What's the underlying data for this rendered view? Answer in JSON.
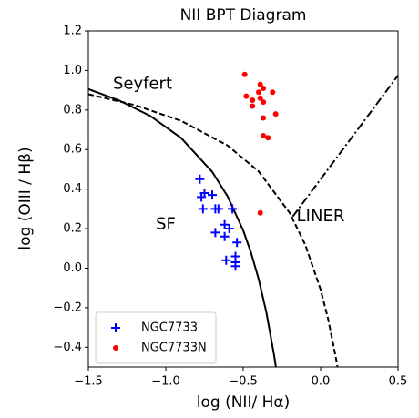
{
  "chart_data": {
    "type": "scatter",
    "title": "NII BPT Diagram",
    "x_label": "log (NII/ Hα)",
    "y_label": "log (OIII / Hβ)",
    "xlim": [
      -1.5,
      0.5
    ],
    "ylim": [
      -0.5,
      1.2
    ],
    "xticks": [
      {
        "value": -1.5,
        "label": "−1.5"
      },
      {
        "value": -1,
        "label": "−1.0"
      },
      {
        "value": -0.5,
        "label": "−0.5"
      },
      {
        "value": 0,
        "label": "0.0"
      },
      0.5
    ],
    "yticks": [
      {
        "value": -0.4,
        "label": "−0.4"
      },
      {
        "value": -0.2,
        "label": "−0.2"
      },
      {
        "value": 0,
        "label": "0.0"
      },
      0.2,
      0.4,
      0.6,
      0.8,
      {
        "value": 1,
        "label": "1.0"
      },
      1.2
    ],
    "legend": "lower left",
    "annotations": [
      "Seyfert",
      "SF",
      "LINER"
    ],
    "series": [
      {
        "name": "NGC7733",
        "color": "#0000ff",
        "marker": "plus",
        "x": [
          -0.78,
          -0.75,
          -0.77,
          -0.7,
          -0.76,
          -0.68,
          -0.66,
          -0.57,
          -0.68,
          -0.62,
          -0.59,
          -0.62,
          -0.54,
          -0.61,
          -0.55,
          -0.55,
          -0.55
        ],
        "y": [
          0.45,
          0.38,
          0.36,
          0.37,
          0.3,
          0.3,
          0.3,
          0.3,
          0.18,
          0.22,
          0.2,
          0.16,
          0.13,
          0.04,
          0.06,
          0.03,
          0.01
        ]
      },
      {
        "name": "NGC7733N",
        "color": "#ff0000",
        "marker": "circle",
        "x": [
          -0.49,
          -0.48,
          -0.44,
          -0.44,
          -0.4,
          -0.39,
          -0.37,
          -0.39,
          -0.37,
          -0.31,
          -0.29,
          -0.37,
          -0.37,
          -0.34,
          -0.39
        ],
        "y": [
          0.98,
          0.87,
          0.85,
          0.82,
          0.89,
          0.93,
          0.91,
          0.86,
          0.84,
          0.89,
          0.78,
          0.76,
          0.67,
          0.66,
          0.28
        ]
      }
    ],
    "curves": [
      {
        "style": "solid",
        "color": "#000000",
        "x": [
          -1.5,
          -1.3,
          -1.1,
          -0.9,
          -0.7,
          -0.6,
          -0.5,
          -0.45,
          -0.4,
          -0.35,
          -0.3,
          -0.289
        ],
        "y": [
          0.906,
          0.848,
          0.77,
          0.658,
          0.487,
          0.362,
          0.191,
          0.08,
          -0.056,
          -0.225,
          -0.443,
          -0.499
        ]
      },
      {
        "style": "dashed",
        "color": "#000000",
        "x": [
          -1.5,
          -1.2,
          -0.9,
          -0.6,
          -0.4,
          -0.2,
          -0.1,
          0,
          0.05,
          0.1,
          0.109
        ],
        "y": [
          0.88,
          0.825,
          0.745,
          0.62,
          0.489,
          0.28,
          0.12,
          -0.108,
          -0.262,
          -0.459,
          -0.5
        ]
      },
      {
        "style": "dashdot",
        "color": "#000000",
        "x": [
          -0.18,
          0.5
        ],
        "y": [
          0.261,
          0.975
        ]
      }
    ]
  }
}
